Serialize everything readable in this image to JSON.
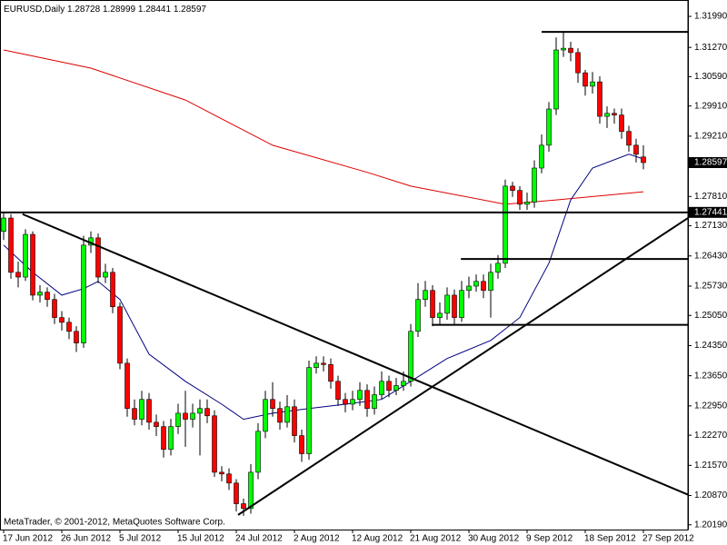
{
  "chart_data": {
    "type": "candlestick",
    "title": "EURUSD,Daily",
    "footer": "MetaTrader, © 2001-2012, MetaQuotes Software Corp.",
    "categories": [
      "17 Jun 2012",
      null,
      null,
      null,
      null,
      null,
      null,
      null,
      "26 Jun 2012",
      null,
      null,
      null,
      null,
      null,
      null,
      null,
      "5 Jul 2012",
      null,
      null,
      null,
      null,
      null,
      null,
      null,
      "15 Jul 2012",
      null,
      null,
      null,
      null,
      null,
      null,
      null,
      "24 Jul 2012",
      null,
      null,
      null,
      null,
      null,
      null,
      null,
      "2 Aug 2012",
      null,
      null,
      null,
      null,
      null,
      null,
      null,
      "12 Aug 2012",
      null,
      null,
      null,
      null,
      null,
      null,
      null,
      "21 Aug 2012",
      null,
      null,
      null,
      null,
      null,
      null,
      null,
      "30 Aug 2012",
      null,
      null,
      null,
      null,
      null,
      null,
      null,
      "9 Sep 2012",
      null,
      null,
      null,
      null,
      null,
      null,
      null,
      "18 Sep 2012",
      null,
      null,
      null,
      null,
      null,
      null,
      null,
      "27 Sep 2012"
    ],
    "open": [
      1.27,
      1.2731,
      1.2605,
      1.2594,
      1.2693,
      1.2552,
      1.2559,
      1.2542,
      1.25,
      1.2489,
      1.2468,
      1.2441,
      1.2668,
      1.2685,
      1.2594,
      1.2605,
      1.2525,
      1.2394,
      1.2289,
      1.2264,
      1.231,
      1.2257,
      1.2247,
      1.2194,
      1.2247,
      1.2278,
      1.2264,
      1.2278,
      1.2289,
      1.2272,
      1.2141,
      1.2137,
      1.2116,
      1.2068,
      1.2057,
      1.2141,
      1.2236,
      1.231,
      1.2289,
      1.2257,
      1.2293,
      1.2226,
      1.2184,
      1.2384,
      1.2394,
      1.2391,
      1.2352,
      1.231,
      1.2299,
      1.231,
      1.2331,
      1.2289,
      1.2321,
      1.2352,
      1.2331,
      1.2342,
      1.2352,
      1.2468,
      1.2542,
      1.2563,
      1.25,
      1.251,
      1.2552,
      1.25,
      1.2563,
      1.2573,
      1.2584,
      1.2563,
      1.2605,
      1.2626,
      1.2805,
      1.2795,
      1.2763,
      1.2768,
      1.2847,
      1.29,
      1.2984,
      1.3121,
      1.3125,
      1.3115,
      1.3068,
      1.3037,
      1.3047,
      1.2967,
      1.2974,
      1.297,
      1.2932,
      1.29,
      1.28728
    ],
    "high": [
      1.2745,
      1.274,
      1.263,
      1.2705,
      1.27,
      1.2575,
      1.257,
      1.2555,
      1.2515,
      1.25,
      1.248,
      1.269,
      1.27,
      1.2695,
      1.2625,
      1.2615,
      1.2535,
      1.2405,
      1.231,
      1.233,
      1.2325,
      1.2275,
      1.226,
      1.2265,
      1.23,
      1.233,
      1.23,
      1.231,
      1.231,
      1.2285,
      1.2155,
      1.215,
      1.2125,
      1.208,
      1.216,
      1.2255,
      1.233,
      1.235,
      1.2305,
      1.232,
      1.231,
      1.224,
      1.24,
      1.241,
      1.241,
      1.2405,
      1.2365,
      1.2325,
      1.233,
      1.235,
      1.2345,
      1.234,
      1.2375,
      1.2365,
      1.236,
      1.2375,
      1.2485,
      1.258,
      1.2585,
      1.2575,
      1.2535,
      1.257,
      1.2565,
      1.2585,
      1.2595,
      1.26,
      1.26,
      1.2625,
      1.2645,
      1.282,
      1.2815,
      1.2805,
      1.279,
      1.2865,
      1.2925,
      1.3,
      1.315,
      1.3163,
      1.314,
      1.3125,
      1.3075,
      1.307,
      1.306,
      1.299,
      1.2985,
      1.2985,
      1.2945,
      1.2915,
      1.28999
    ],
    "low": [
      1.268,
      1.259,
      1.257,
      1.2585,
      1.254,
      1.2535,
      1.2525,
      1.2485,
      1.247,
      1.245,
      1.242,
      1.243,
      1.265,
      1.258,
      1.258,
      1.251,
      1.238,
      1.227,
      1.225,
      1.225,
      1.224,
      1.2225,
      1.2175,
      1.218,
      1.223,
      1.22,
      1.2245,
      1.218,
      1.2255,
      1.213,
      1.212,
      1.21,
      1.205,
      1.204,
      1.2045,
      1.2125,
      1.222,
      1.227,
      1.224,
      1.2245,
      1.221,
      1.2165,
      1.217,
      1.237,
      1.2375,
      1.2335,
      1.2295,
      1.228,
      1.2285,
      1.2295,
      1.227,
      1.2275,
      1.231,
      1.2315,
      1.232,
      1.233,
      1.234,
      1.2455,
      1.2525,
      1.248,
      1.2485,
      1.2495,
      1.2485,
      1.249,
      1.2545,
      1.256,
      1.2545,
      1.25,
      1.259,
      1.2615,
      1.278,
      1.275,
      1.275,
      1.2755,
      1.2835,
      1.2885,
      1.297,
      1.3105,
      1.3095,
      1.3045,
      1.3015,
      1.302,
      1.295,
      1.294,
      1.295,
      1.2915,
      1.2885,
      1.286,
      1.28441
    ],
    "close": [
      1.2731,
      1.2605,
      1.2594,
      1.2693,
      1.2552,
      1.2559,
      1.2542,
      1.25,
      1.2489,
      1.2468,
      1.2441,
      1.2668,
      1.2685,
      1.2594,
      1.2605,
      1.2525,
      1.2394,
      1.2289,
      1.2264,
      1.231,
      1.2257,
      1.2247,
      1.2194,
      1.2247,
      1.2278,
      1.2264,
      1.2278,
      1.2289,
      1.2272,
      1.2141,
      1.2137,
      1.2116,
      1.2068,
      1.2057,
      1.2141,
      1.2236,
      1.231,
      1.2289,
      1.2257,
      1.2293,
      1.2226,
      1.2184,
      1.2384,
      1.2394,
      1.2391,
      1.2352,
      1.231,
      1.2299,
      1.231,
      1.2331,
      1.2289,
      1.2321,
      1.2352,
      1.2331,
      1.2342,
      1.2352,
      1.2468,
      1.2542,
      1.2563,
      1.25,
      1.251,
      1.2552,
      1.25,
      1.2563,
      1.2573,
      1.2584,
      1.2563,
      1.2605,
      1.2626,
      1.2805,
      1.2795,
      1.2763,
      1.2768,
      1.2847,
      1.29,
      1.2984,
      1.3121,
      1.3125,
      1.3115,
      1.3068,
      1.3037,
      1.3047,
      1.2967,
      1.2974,
      1.297,
      1.2932,
      1.29,
      1.2879,
      1.28597
    ],
    "up_color": "#00ff00",
    "down_color": "#ff0000",
    "series": [
      {
        "color": "#dd0000",
        "x": [
          0,
          12,
          25,
          37,
          50,
          56,
          69,
          76,
          88
        ],
        "values": [
          1.3121,
          1.3079,
          1.3005,
          1.29,
          1.2837,
          1.2805,
          1.2763,
          1.2773,
          1.2792
        ]
      },
      {
        "color": "#00007f",
        "x": [
          0,
          4,
          8,
          11,
          13,
          16,
          20,
          25,
          30,
          33,
          37,
          42,
          47,
          52,
          56,
          61,
          67,
          71,
          75,
          78,
          81,
          86,
          88
        ],
        "values": [
          1.2668,
          1.2605,
          1.2552,
          1.2567,
          1.2584,
          1.2542,
          1.2415,
          1.2352,
          1.2299,
          1.2264,
          1.2278,
          1.2289,
          1.2299,
          1.231,
          1.2352,
          1.2405,
          1.2447,
          1.25,
          1.2626,
          1.2773,
          1.2847,
          1.2879,
          1.2868
        ]
      }
    ],
    "lines": [
      {
        "x": [
          -0.5,
          94.125
        ],
        "y": [
          1.27441,
          1.27441
        ]
      },
      {
        "x": [
          74,
          94.125
        ],
        "y": [
          1.3163,
          1.3163
        ]
      },
      {
        "x": [
          62.9,
          94.125
        ],
        "y": [
          1.2636,
          1.2636
        ]
      },
      {
        "x": [
          58.9,
          94.125
        ],
        "y": [
          1.2483,
          1.2483
        ]
      },
      {
        "x": [
          2.6,
          94.125
        ],
        "y": [
          1.274,
          1.2089
        ]
      },
      {
        "x": [
          32.25,
          94.125
        ],
        "y": [
          1.2042,
          1.2731
        ]
      }
    ],
    "xlim": [
      -0.5,
      94.125
    ],
    "ylim": [
      1.2008,
      1.3237
    ],
    "yticks": [
      {
        "value": 1.3199,
        "label": "1.31990"
      },
      {
        "value": 1.3127,
        "label": "1.31270"
      },
      {
        "value": 1.3059,
        "label": "1.30590"
      },
      {
        "value": 1.2991,
        "label": "1.29910"
      },
      {
        "value": 1.2921,
        "label": "1.29210"
      },
      {
        "value": 1.2781,
        "label": "1.27810"
      },
      {
        "value": 1.2713,
        "label": "1.27130"
      },
      {
        "value": 1.2643,
        "label": "1.26430"
      },
      {
        "value": 1.2573,
        "label": "1.25730"
      },
      {
        "value": 1.2505,
        "label": "1.25050"
      },
      {
        "value": 1.2435,
        "label": "1.24350"
      },
      {
        "value": 1.2365,
        "label": "1.23650"
      },
      {
        "value": 1.2295,
        "label": "1.22950"
      },
      {
        "value": 1.2227,
        "label": "1.22270"
      },
      {
        "value": 1.2157,
        "label": "1.21570"
      },
      {
        "value": 1.2087,
        "label": "1.20870"
      },
      {
        "value": 1.2019,
        "label": "1.20190"
      }
    ]
  }
}
